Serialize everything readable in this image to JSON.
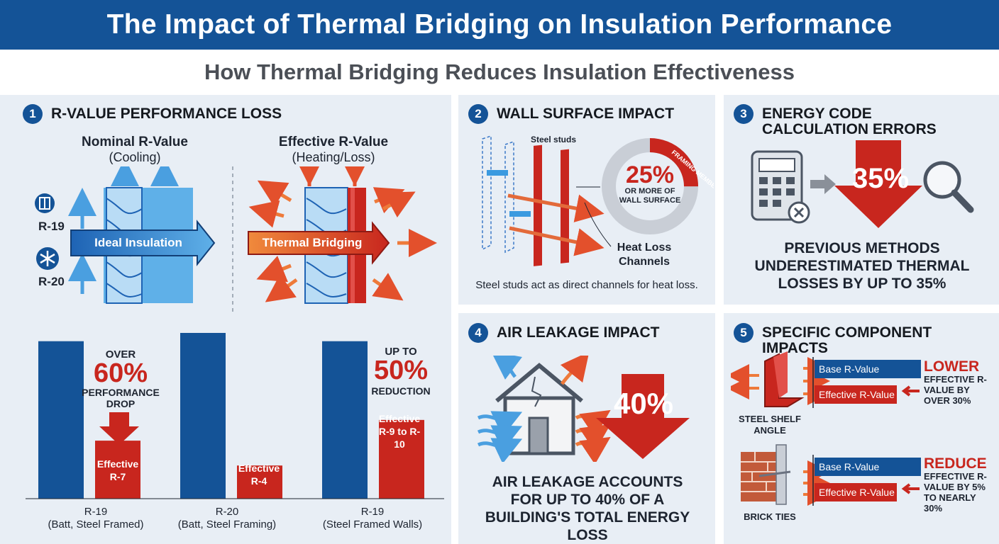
{
  "header": {
    "title": "The Impact of Thermal Bridging on Insulation Performance",
    "subtitle": "How Thermal Bridging Reduces Insulation Effectiveness"
  },
  "colors": {
    "blue": "#145397",
    "red": "#c8261e",
    "panel": "#e8eef5",
    "orange": "#ee7a3a"
  },
  "panel1": {
    "number": "1",
    "title": "R-VALUE PERFORMANCE LOSS",
    "nominal_title": "Nominal R-Value",
    "nominal_sub": "(Cooling)",
    "effective_title": "Effective R-Value",
    "effective_sub": "(Heating/Loss)",
    "label_r19": "R-19",
    "label_r20": "R-20",
    "ideal_label": "Ideal Insulation",
    "bridging_label": "Thermal Bridging",
    "icons": [
      "wall-icon",
      "snowflake-icon"
    ],
    "bars": [
      {
        "base_label": "R-19",
        "base_sub": "(Batt, Steel Framed)",
        "nominal": 19,
        "effective": 7,
        "effective_label": "Effective R-7",
        "callout_top": "OVER",
        "callout_big": "60%",
        "callout_bottom": "PERFORMANCE DROP"
      },
      {
        "base_label": "R-20",
        "base_sub": "(Batt, Steel Framing)",
        "nominal": 20,
        "effective": 4,
        "effective_label": "Effective R-4"
      },
      {
        "base_label": "R-19",
        "base_sub": "(Steel Framed Walls)",
        "nominal": 19,
        "effective": 9.5,
        "effective_label": "Effective R-9 to R-10",
        "callout_top": "UP TO",
        "callout_big": "50%",
        "callout_bottom": "REDUCTION"
      }
    ]
  },
  "panel2": {
    "number": "2",
    "title": "WALL SURFACE IMPACT",
    "studs_label": "Steel studs",
    "ring_label": "FRAMING MEMBERS",
    "ring_percent": "25%",
    "ring_fraction": 0.25,
    "ring_sub": "OR MORE OF WALL SURFACE",
    "channels_label": "Heat Loss Channels",
    "caption": "Steel studs act as direct channels for heat loss."
  },
  "panel3": {
    "number": "3",
    "title": "ENERGY CODE CALCULATION ERRORS",
    "arrow_percent": "35%",
    "statement": "PREVIOUS METHODS UNDERESTIMATED THERMAL LOSSES BY UP TO 35%",
    "icons": [
      "calculator-icon",
      "magnifier-icon"
    ]
  },
  "panel4": {
    "number": "4",
    "title": "AIR LEAKAGE IMPACT",
    "arrow_percent": "40%",
    "statement": "AIR LEAKAGE ACCOUNTS FOR UP TO 40% OF A BUILDING'S TOTAL ENERGY LOSS",
    "icons": [
      "house-icon"
    ]
  },
  "panel5": {
    "number": "5",
    "title": "SPECIFIC COMPONENT IMPACTS",
    "components": [
      {
        "name": "STEEL SHELF ANGLE",
        "base_label": "Base R-Value",
        "effective_label": "Effective R-Value",
        "headline": "LOWER",
        "detail": "EFFECTIVE R-VALUE BY OVER 30%"
      },
      {
        "name": "BRICK TIES",
        "base_label": "Base R-Value",
        "effective_label": "Effective R-Value",
        "headline": "REDUCE",
        "detail": "EFFECTIVE R-VALUE BY 5% TO NEARLY 30%"
      }
    ]
  }
}
